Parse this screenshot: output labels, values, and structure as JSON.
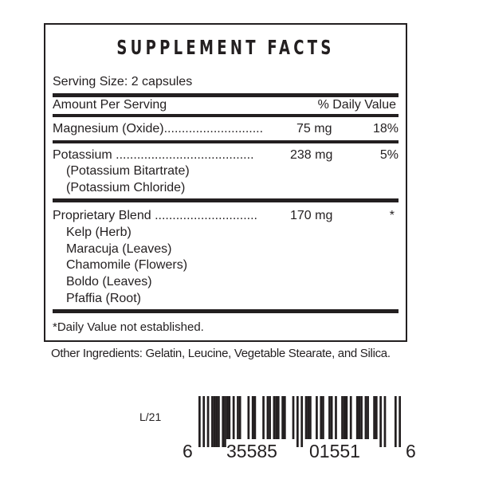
{
  "title": "SUPPLEMENT FACTS",
  "serving_size": "Serving Size: 2 capsules",
  "header": {
    "left": "Amount Per Serving",
    "right": "% Daily Value"
  },
  "rows": [
    {
      "name": "Magnesium (Oxide)............................",
      "amount": "75 mg",
      "dv": "18%"
    },
    {
      "name": "Potassium .......................................",
      "amount": "238 mg",
      "dv": "5%",
      "sub": [
        "(Potassium Bitartrate)",
        "(Potassium Chloride)"
      ]
    },
    {
      "name": "Proprietary Blend .............................",
      "amount": "170 mg",
      "dv": "*",
      "sub": [
        "Kelp (Herb)",
        "Maracuja (Leaves)",
        "Chamomile (Flowers)",
        "Boldo (Leaves)",
        "Pfaffia (Root)"
      ]
    }
  ],
  "footnote": "*Daily Value not established.",
  "other_ingredients": "Other Ingredients: Gelatin, Leucine, Vegetable Stearate, and Silica.",
  "lot": "L/21",
  "barcode": {
    "digits": "635585015516",
    "groups": [
      "6",
      "35585",
      "01551",
      "6"
    ]
  }
}
